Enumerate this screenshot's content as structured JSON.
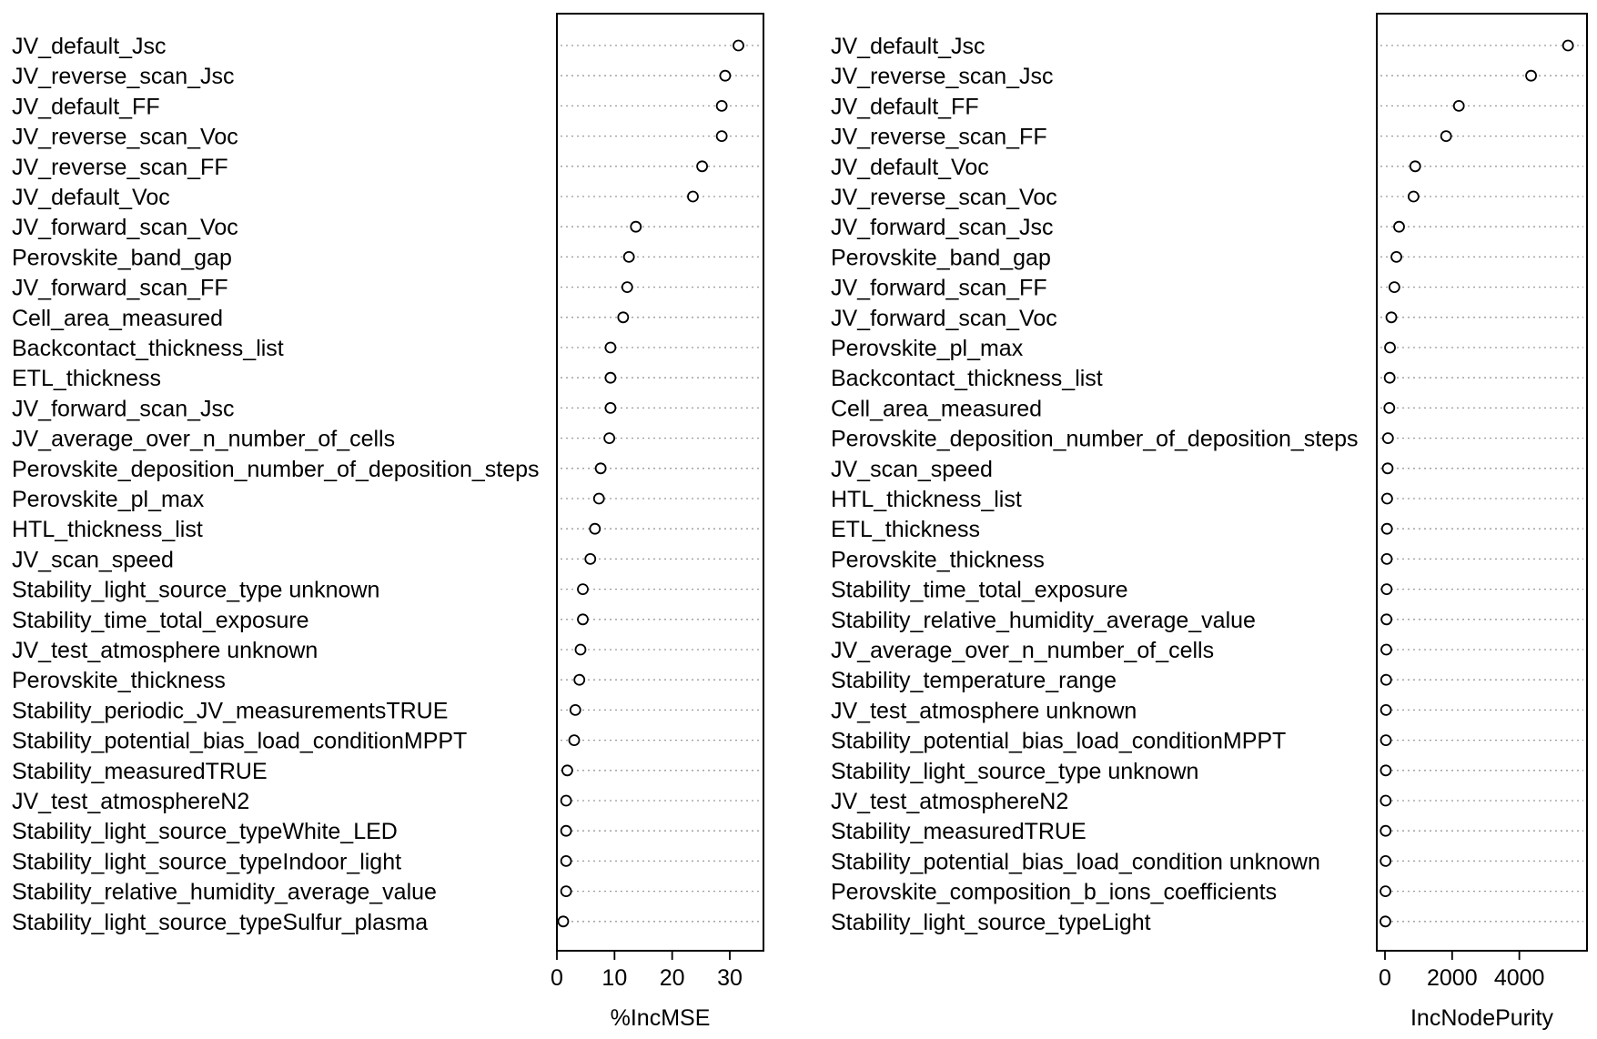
{
  "chart_data": [
    {
      "type": "scatter",
      "title": "",
      "xlabel": "%IncMSE",
      "ylabel": "",
      "xlim": [
        0,
        33
      ],
      "xticks": [
        0,
        10,
        20,
        30
      ],
      "grid": "dotted horizontal guide lines",
      "variables": [
        {
          "name": "JV_default_Jsc",
          "value": 31.5
        },
        {
          "name": "JV_reverse_scan_Jsc",
          "value": 29.2
        },
        {
          "name": "JV_default_FF",
          "value": 28.6
        },
        {
          "name": "JV_reverse_scan_Voc",
          "value": 28.6
        },
        {
          "name": "JV_reverse_scan_FF",
          "value": 25.2
        },
        {
          "name": "JV_default_Voc",
          "value": 23.6
        },
        {
          "name": "JV_forward_scan_Voc",
          "value": 13.7
        },
        {
          "name": "Perovskite_band_gap",
          "value": 12.5
        },
        {
          "name": "JV_forward_scan_FF",
          "value": 12.2
        },
        {
          "name": "Cell_area_measured",
          "value": 11.5
        },
        {
          "name": "Backcontact_thickness_list",
          "value": 9.3
        },
        {
          "name": "ETL_thickness",
          "value": 9.3
        },
        {
          "name": "JV_forward_scan_Jsc",
          "value": 9.3
        },
        {
          "name": "JV_average_over_n_number_of_cells",
          "value": 9.1
        },
        {
          "name": "Perovskite_deposition_number_of_deposition_steps",
          "value": 7.6
        },
        {
          "name": "Perovskite_pl_max",
          "value": 7.3
        },
        {
          "name": "HTL_thickness_list",
          "value": 6.6
        },
        {
          "name": "JV_scan_speed",
          "value": 5.8
        },
        {
          "name": "Stability_light_source_type unknown",
          "value": 4.5
        },
        {
          "name": "Stability_time_total_exposure",
          "value": 4.5
        },
        {
          "name": "JV_test_atmosphere unknown",
          "value": 4.1
        },
        {
          "name": "Perovskite_thickness",
          "value": 3.9
        },
        {
          "name": "Stability_periodic_JV_measurementsTRUE",
          "value": 3.2
        },
        {
          "name": "Stability_potential_bias_load_conditionMPPT",
          "value": 3.0
        },
        {
          "name": "Stability_measuredTRUE",
          "value": 1.8
        },
        {
          "name": "JV_test_atmosphereN2",
          "value": 1.6
        },
        {
          "name": "Stability_light_source_typeWhite_LED",
          "value": 1.6
        },
        {
          "name": "Stability_light_source_typeIndoor_light",
          "value": 1.6
        },
        {
          "name": "Stability_relative_humidity_average_value",
          "value": 1.6
        },
        {
          "name": "Stability_light_source_typeSulfur_plasma",
          "value": 1.1
        }
      ]
    },
    {
      "type": "scatter",
      "title": "",
      "xlabel": "IncNodePurity",
      "ylabel": "",
      "xlim": [
        0,
        5600
      ],
      "xticks": [
        0,
        2000,
        4000
      ],
      "grid": "dotted horizontal guide lines",
      "variables": [
        {
          "name": "JV_default_Jsc",
          "value": 5450
        },
        {
          "name": "JV_reverse_scan_Jsc",
          "value": 4350
        },
        {
          "name": "JV_default_FF",
          "value": 2200
        },
        {
          "name": "JV_reverse_scan_FF",
          "value": 1820
        },
        {
          "name": "JV_default_Voc",
          "value": 900
        },
        {
          "name": "JV_reverse_scan_Voc",
          "value": 850
        },
        {
          "name": "JV_forward_scan_Jsc",
          "value": 420
        },
        {
          "name": "Perovskite_band_gap",
          "value": 340
        },
        {
          "name": "JV_forward_scan_FF",
          "value": 280
        },
        {
          "name": "JV_forward_scan_Voc",
          "value": 190
        },
        {
          "name": "Perovskite_pl_max",
          "value": 150
        },
        {
          "name": "Backcontact_thickness_list",
          "value": 140
        },
        {
          "name": "Cell_area_measured",
          "value": 130
        },
        {
          "name": "Perovskite_deposition_number_of_deposition_steps",
          "value": 90
        },
        {
          "name": "JV_scan_speed",
          "value": 80
        },
        {
          "name": "HTL_thickness_list",
          "value": 65
        },
        {
          "name": "ETL_thickness",
          "value": 60
        },
        {
          "name": "Perovskite_thickness",
          "value": 55
        },
        {
          "name": "Stability_time_total_exposure",
          "value": 50
        },
        {
          "name": "Stability_relative_humidity_average_value",
          "value": 45
        },
        {
          "name": "JV_average_over_n_number_of_cells",
          "value": 40
        },
        {
          "name": "Stability_temperature_range",
          "value": 35
        },
        {
          "name": "JV_test_atmosphere unknown",
          "value": 30
        },
        {
          "name": "Stability_potential_bias_load_conditionMPPT",
          "value": 28
        },
        {
          "name": "Stability_light_source_type unknown",
          "value": 25
        },
        {
          "name": "JV_test_atmosphereN2",
          "value": 22
        },
        {
          "name": "Stability_measuredTRUE",
          "value": 20
        },
        {
          "name": "Stability_potential_bias_load_condition unknown",
          "value": 18
        },
        {
          "name": "Perovskite_composition_b_ions_coefficients",
          "value": 15
        },
        {
          "name": "Stability_light_source_typeLight",
          "value": 12
        }
      ]
    }
  ]
}
